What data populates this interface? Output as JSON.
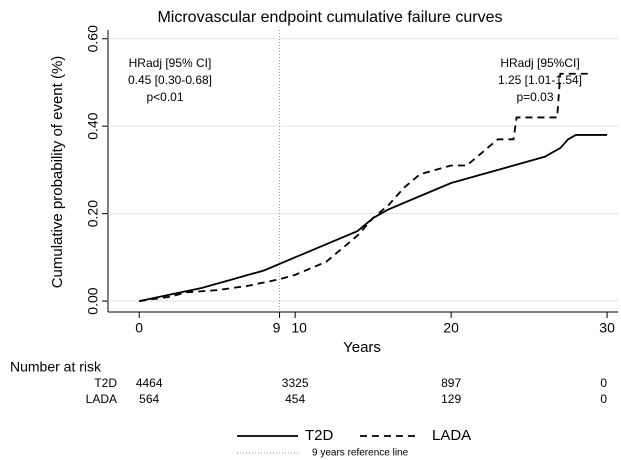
{
  "chart_data": {
    "type": "line",
    "title": "Microvascular endpoint cumulative failure curves",
    "x_label": "Years",
    "y_label": "Cumulative probability of event (%)",
    "xlim": [
      -2,
      30.7
    ],
    "ylim": [
      -0.025,
      0.62
    ],
    "xticks": [
      0,
      9,
      10,
      20,
      30
    ],
    "yticks": [
      {
        "value": 0,
        "label": "0.00"
      },
      {
        "value": 0.2,
        "label": "0.20"
      },
      {
        "value": 0.4,
        "label": "0.40"
      },
      {
        "value": 0.6,
        "label": "0.60"
      }
    ],
    "grid": true,
    "series": [
      {
        "name": "T2D",
        "color": "#000000",
        "line_style": "solid",
        "x": [
          0,
          2,
          4,
          6,
          8,
          10,
          12,
          14,
          15,
          16,
          18,
          20,
          22,
          24,
          25,
          26,
          27,
          27.5,
          28,
          30
        ],
        "values": [
          0,
          0.015,
          0.03,
          0.05,
          0.07,
          0.1,
          0.13,
          0.16,
          0.19,
          0.21,
          0.24,
          0.27,
          0.29,
          0.31,
          0.32,
          0.33,
          0.35,
          0.37,
          0.38,
          0.38
        ]
      },
      {
        "name": "LADA",
        "color": "#000000",
        "line_style": "dashed",
        "x": [
          0,
          2,
          3,
          5,
          7,
          9,
          10,
          12,
          14,
          15,
          16,
          17,
          18,
          20,
          21,
          22,
          23,
          24,
          24.2,
          26.8,
          27,
          29
        ],
        "values": [
          0,
          0.01,
          0.02,
          0.025,
          0.035,
          0.05,
          0.06,
          0.09,
          0.15,
          0.19,
          0.22,
          0.26,
          0.29,
          0.31,
          0.31,
          0.34,
          0.37,
          0.37,
          0.42,
          0.42,
          0.52,
          0.52
        ]
      }
    ],
    "reference_line": {
      "x": 9,
      "label": "9 years reference line"
    },
    "annotations": [
      [
        "HRadj [95% CI]",
        "0.45 [0.30-0.68]",
        "p<0.01"
      ],
      [
        "HRadj [95%CI]",
        "1.25 [1.01-1.54]",
        "p=0.03"
      ]
    ],
    "risk_table": {
      "title": "Number at risk",
      "times": [
        0,
        10,
        20,
        30
      ],
      "rows": [
        {
          "name": "T2D",
          "values": [
            4464,
            3325,
            897,
            0
          ]
        },
        {
          "name": "LADA",
          "values": [
            564,
            454,
            129,
            0
          ]
        }
      ]
    }
  }
}
